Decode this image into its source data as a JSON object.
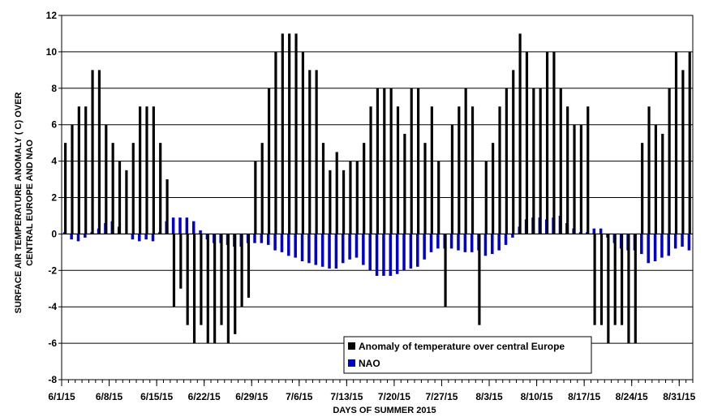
{
  "chart_data": {
    "type": "bar",
    "xlabel": "DAYS OF SUMMER 2015",
    "ylabel_lines": [
      "SURFACE AIR TEMPERATURE ANOMALY ( C) OVER",
      "CENTRAL EUROPE AND NAO"
    ],
    "ylim": [
      -8,
      12
    ],
    "yticks": [
      -8,
      -6,
      -4,
      -2,
      0,
      2,
      4,
      6,
      8,
      10,
      12
    ],
    "grid": "horizontal",
    "legend_position": "bottom-right",
    "x_tick_labels": [
      "6/1/15",
      "6/8/15",
      "6/15/15",
      "6/22/15",
      "6/29/15",
      "7/6/15",
      "7/13/15",
      "7/20/15",
      "7/27/15",
      "8/3/15",
      "8/10/15",
      "8/17/15",
      "8/24/15",
      "8/31/15"
    ],
    "x": [
      "6/1/15",
      "6/2/15",
      "6/3/15",
      "6/4/15",
      "6/5/15",
      "6/6/15",
      "6/7/15",
      "6/8/15",
      "6/9/15",
      "6/10/15",
      "6/11/15",
      "6/12/15",
      "6/13/15",
      "6/14/15",
      "6/15/15",
      "6/16/15",
      "6/17/15",
      "6/18/15",
      "6/19/15",
      "6/20/15",
      "6/21/15",
      "6/22/15",
      "6/23/15",
      "6/24/15",
      "6/25/15",
      "6/26/15",
      "6/27/15",
      "6/28/15",
      "6/29/15",
      "6/30/15",
      "7/1/15",
      "7/2/15",
      "7/3/15",
      "7/4/15",
      "7/5/15",
      "7/6/15",
      "7/7/15",
      "7/8/15",
      "7/9/15",
      "7/10/15",
      "7/11/15",
      "7/12/15",
      "7/13/15",
      "7/14/15",
      "7/15/15",
      "7/16/15",
      "7/17/15",
      "7/18/15",
      "7/19/15",
      "7/20/15",
      "7/21/15",
      "7/22/15",
      "7/23/15",
      "7/24/15",
      "7/25/15",
      "7/26/15",
      "7/27/15",
      "7/28/15",
      "7/29/15",
      "7/30/15",
      "7/31/15",
      "8/1/15",
      "8/2/15",
      "8/3/15",
      "8/4/15",
      "8/5/15",
      "8/6/15",
      "8/7/15",
      "8/8/15",
      "8/9/15",
      "8/10/15",
      "8/11/15",
      "8/12/15",
      "8/13/15",
      "8/14/15",
      "8/15/15",
      "8/16/15",
      "8/17/15",
      "8/18/15",
      "8/19/15",
      "8/20/15",
      "8/21/15",
      "8/22/15",
      "8/23/15",
      "8/24/15",
      "8/25/15",
      "8/26/15",
      "8/27/15",
      "8/28/15",
      "8/29/15",
      "8/30/15",
      "8/31/15",
      "9/1/15"
    ],
    "series": [
      {
        "name": "Anomaly of temperature over central Europe",
        "color": "#000000",
        "values": [
          5,
          6,
          7,
          7,
          9,
          9,
          6,
          5,
          4,
          3.5,
          5,
          7,
          7,
          7,
          5,
          3,
          -4,
          -3,
          -5,
          -6,
          -5,
          -6,
          -6,
          -5,
          -6,
          -5.5,
          -4,
          -3.5,
          4,
          5,
          8,
          10,
          11,
          11,
          11,
          10,
          9,
          9,
          5,
          3.5,
          4.5,
          3.5,
          4,
          4,
          5,
          7,
          8,
          8,
          8,
          7,
          5.5,
          8,
          8,
          5,
          7,
          4,
          -4,
          6,
          7,
          8,
          7,
          -5,
          4,
          5,
          7,
          8,
          9,
          11,
          10,
          8,
          8,
          10,
          10,
          8,
          7,
          6,
          6,
          7,
          -5,
          -5,
          -6,
          -5,
          -5,
          -6,
          -6,
          5,
          7,
          6,
          5.5,
          8,
          10,
          9,
          10
        ]
      },
      {
        "name": "NAO",
        "color": "#0000cc",
        "values": [
          0.1,
          -0.3,
          -0.4,
          -0.2,
          0.1,
          0.3,
          0.6,
          0.7,
          0.4,
          0.0,
          -0.3,
          -0.4,
          -0.3,
          -0.4,
          0.1,
          0.7,
          0.9,
          0.9,
          0.9,
          0.7,
          0.2,
          -0.3,
          -0.5,
          -0.5,
          -0.6,
          -0.7,
          -0.7,
          -0.5,
          -0.5,
          -0.5,
          -0.6,
          -0.9,
          -1.0,
          -1.2,
          -1.3,
          -1.5,
          -1.6,
          -1.7,
          -1.8,
          -1.9,
          -1.9,
          -1.6,
          -1.4,
          -1.3,
          -1.7,
          -2.0,
          -2.3,
          -2.3,
          -2.3,
          -2.2,
          -2.0,
          -1.9,
          -1.8,
          -1.4,
          -1.0,
          -0.8,
          -0.8,
          -0.8,
          -0.9,
          -1.0,
          -1.0,
          -0.9,
          -1.2,
          -1.1,
          -0.9,
          -0.6,
          -0.2,
          0.4,
          0.8,
          0.9,
          0.9,
          0.8,
          0.9,
          1.0,
          0.6,
          0.3,
          0.1,
          0.1,
          0.3,
          0.3,
          -0.2,
          -0.5,
          -0.8,
          -0.9,
          -0.9,
          -1.1,
          -1.6,
          -1.5,
          -1.3,
          -1.2,
          -0.8,
          -0.7,
          -0.9
        ]
      }
    ]
  }
}
